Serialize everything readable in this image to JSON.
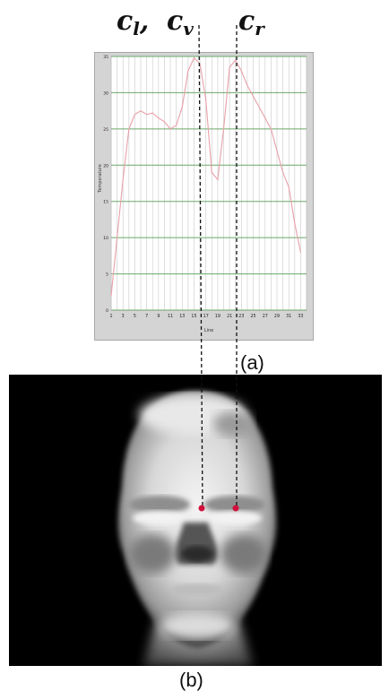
{
  "labels": {
    "c_l": "c",
    "c_l_sub": "l",
    "comma": ",",
    "c_v": "c",
    "c_v_sub": "v",
    "c_r": "c",
    "c_r_sub": "r"
  },
  "captions": {
    "a": "(a)",
    "b": "(b)"
  },
  "markers": {
    "color": "#d0103a"
  },
  "chart_data": {
    "type": "line",
    "title": "",
    "xlabel": "Line",
    "ylabel": "Temperature",
    "xlim": [
      1,
      34
    ],
    "ylim": [
      0,
      35
    ],
    "x_tick_labels": [
      "1",
      "3",
      "5",
      "7",
      "9",
      "11",
      "13",
      "15",
      "17",
      "19",
      "21",
      "23",
      "25",
      "27",
      "29",
      "31",
      "33"
    ],
    "y_tick_labels": [
      "0",
      "5",
      "10",
      "15",
      "20",
      "25",
      "30",
      "35"
    ],
    "grid": true,
    "series": [
      {
        "color": "#e8a0a8",
        "x": [
          1,
          2,
          3,
          4,
          5,
          6,
          7,
          8,
          9,
          10,
          11,
          12,
          13,
          14,
          15,
          16,
          17,
          18,
          19,
          20,
          21,
          22,
          23,
          24,
          25,
          26,
          27,
          28,
          29,
          30,
          31,
          32,
          33
        ],
        "y": [
          2,
          10,
          18,
          25,
          27,
          27.5,
          27,
          27.2,
          26.5,
          26,
          25,
          25.5,
          28,
          33,
          34.8,
          34,
          29,
          19,
          18,
          25,
          33.5,
          34.5,
          33,
          31,
          29.5,
          28,
          26.5,
          25,
          22,
          19,
          17,
          12,
          8
        ]
      }
    ]
  }
}
